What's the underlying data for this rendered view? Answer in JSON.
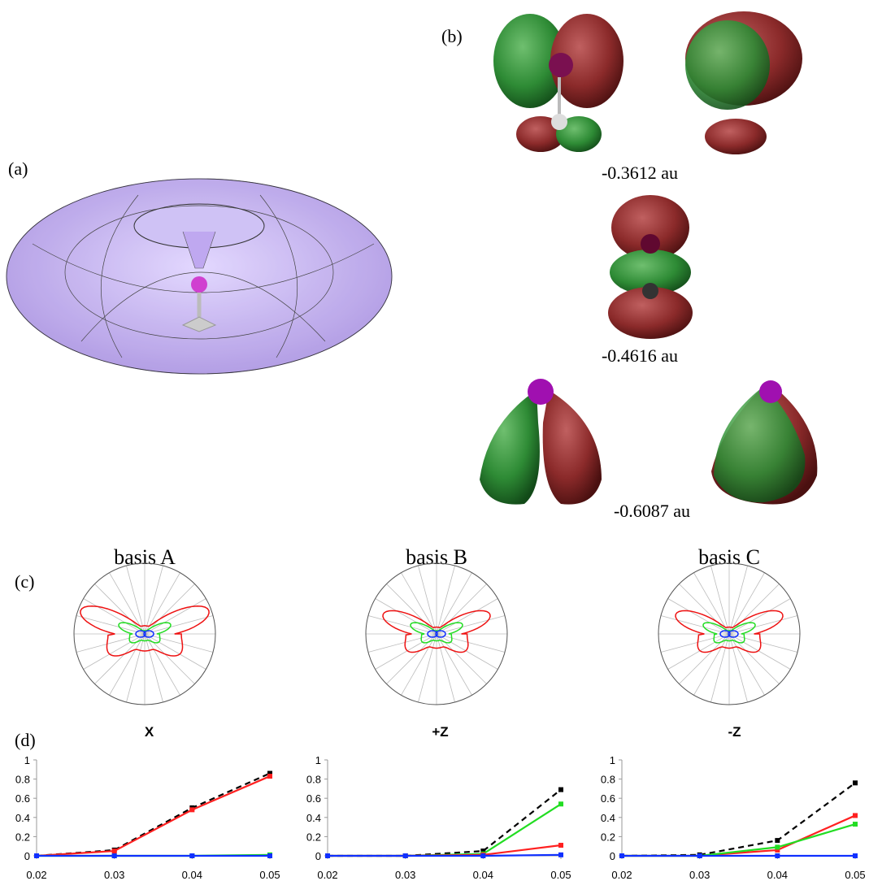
{
  "panel_labels": {
    "a": "(a)",
    "b": "(b)",
    "c": "(c)",
    "d": "(d)"
  },
  "energies": [
    "-0.3612 au",
    "-0.4616 au",
    "-0.6087 au"
  ],
  "bases": [
    "basis A",
    "basis B",
    "basis C"
  ],
  "chart_data": [
    {
      "type": "line",
      "title": "X",
      "x": [
        0.02,
        0.03,
        0.04,
        0.05
      ],
      "xlim": [
        0.02,
        0.05
      ],
      "xticks": [
        0.02,
        0.03,
        0.04,
        0.05
      ],
      "ylim": [
        0,
        1
      ],
      "yticks": [
        0,
        0.2,
        0.4,
        0.6,
        0.8,
        1
      ],
      "series": [
        {
          "color": "#000000",
          "dash": true,
          "values": [
            0,
            0.06,
            0.5,
            0.86
          ]
        },
        {
          "color": "#ff2020",
          "dash": false,
          "values": [
            0,
            0.05,
            0.48,
            0.83
          ]
        },
        {
          "color": "#22dd22",
          "dash": false,
          "values": [
            0,
            0,
            0,
            0.01
          ]
        },
        {
          "color": "#1030ff",
          "dash": false,
          "values": [
            0,
            0,
            0,
            0
          ]
        }
      ]
    },
    {
      "type": "line",
      "title": "+Z",
      "x": [
        0.02,
        0.03,
        0.04,
        0.05
      ],
      "xlim": [
        0.02,
        0.05
      ],
      "xticks": [
        0.02,
        0.03,
        0.04,
        0.05
      ],
      "ylim": [
        0,
        1
      ],
      "yticks": [
        0,
        0.2,
        0.4,
        0.6,
        0.8,
        1
      ],
      "series": [
        {
          "color": "#000000",
          "dash": true,
          "values": [
            0,
            0,
            0.05,
            0.69
          ]
        },
        {
          "color": "#22dd22",
          "dash": false,
          "values": [
            0,
            0,
            0.02,
            0.54
          ]
        },
        {
          "color": "#ff2020",
          "dash": false,
          "values": [
            0,
            0,
            0.01,
            0.11
          ]
        },
        {
          "color": "#1030ff",
          "dash": false,
          "values": [
            0,
            0,
            0,
            0.01
          ]
        }
      ]
    },
    {
      "type": "line",
      "title": "-Z",
      "x": [
        0.02,
        0.03,
        0.04,
        0.05
      ],
      "xlim": [
        0.02,
        0.05
      ],
      "xticks": [
        0.02,
        0.03,
        0.04,
        0.05
      ],
      "ylim": [
        0,
        1
      ],
      "yticks": [
        0,
        0.2,
        0.4,
        0.6,
        0.8,
        1
      ],
      "series": [
        {
          "color": "#000000",
          "dash": true,
          "values": [
            0,
            0.01,
            0.16,
            0.76
          ]
        },
        {
          "color": "#ff2020",
          "dash": false,
          "values": [
            0,
            0,
            0.06,
            0.42
          ]
        },
        {
          "color": "#22dd22",
          "dash": false,
          "values": [
            0,
            0,
            0.09,
            0.33
          ]
        },
        {
          "color": "#1030ff",
          "dash": false,
          "values": [
            0,
            0,
            0,
            0
          ]
        }
      ]
    }
  ]
}
